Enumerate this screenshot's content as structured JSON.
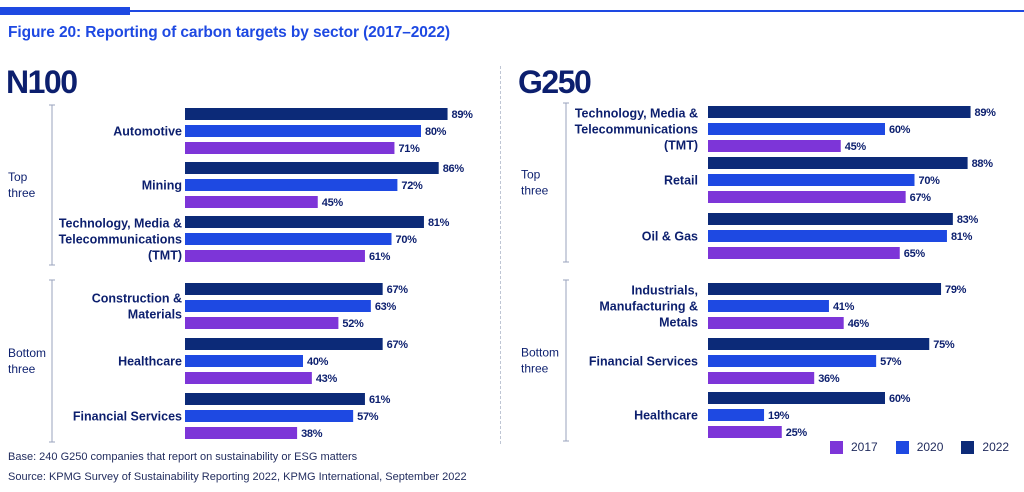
{
  "header": {
    "title": "Figure 20: Reporting of carbon targets by sector (2017–2022)"
  },
  "colors": {
    "accent": "#1e49e2",
    "title": "#1e49e2",
    "panel_title": "#0c1f6e",
    "label": "#0c1f6e",
    "group_label": "#0c1f6e",
    "bracket": "#9aa3bd",
    "series_2022": "#0c2a78",
    "series_2020": "#1e49e2",
    "series_2017": "#7d35d8"
  },
  "footer": {
    "base": "Base: 240 G250 companies that report on sustainability or ESG matters",
    "source": "Source: KPMG Survey of Sustainability Reporting 2022, KPMG International, September 2022"
  },
  "legend": [
    {
      "label": "2017",
      "color": "#7d35d8"
    },
    {
      "label": "2020",
      "color": "#1e49e2"
    },
    {
      "label": "2022",
      "color": "#0c2a78"
    }
  ],
  "chart_data": [
    {
      "type": "bar",
      "orientation": "horizontal",
      "title": "N100",
      "groups": [
        "Top three",
        "Bottom three"
      ],
      "categories": [
        {
          "label": "Automotive",
          "group": "Top three"
        },
        {
          "label": "Mining",
          "group": "Top three"
        },
        {
          "label": "Technology, Media & Telecommunications (TMT)",
          "group": "Top three"
        },
        {
          "label": "Construction & Materials",
          "group": "Bottom three"
        },
        {
          "label": "Healthcare",
          "group": "Bottom three"
        },
        {
          "label": "Financial Services",
          "group": "Bottom three"
        }
      ],
      "series": [
        {
          "name": "2022",
          "values": [
            89,
            86,
            81,
            67,
            67,
            61
          ]
        },
        {
          "name": "2020",
          "values": [
            80,
            72,
            70,
            63,
            40,
            57
          ]
        },
        {
          "name": "2017",
          "values": [
            71,
            45,
            61,
            52,
            43,
            38
          ]
        }
      ],
      "unit": "%",
      "xlim": [
        0,
        100
      ],
      "legend": "bottom-right"
    },
    {
      "type": "bar",
      "orientation": "horizontal",
      "title": "G250",
      "groups": [
        "Top three",
        "Bottom three"
      ],
      "categories": [
        {
          "label": "Technology, Media & Telecommunications (TMT)",
          "group": "Top three"
        },
        {
          "label": "Retail",
          "group": "Top three"
        },
        {
          "label": "Oil & Gas",
          "group": "Top three"
        },
        {
          "label": "Industrials, Manufacturing & Metals",
          "group": "Bottom three"
        },
        {
          "label": "Financial Services",
          "group": "Bottom three"
        },
        {
          "label": "Healthcare",
          "group": "Bottom three"
        }
      ],
      "series": [
        {
          "name": "2022",
          "values": [
            89,
            88,
            83,
            79,
            75,
            60
          ]
        },
        {
          "name": "2020",
          "values": [
            60,
            70,
            81,
            41,
            57,
            19
          ]
        },
        {
          "name": "2017",
          "values": [
            45,
            67,
            65,
            46,
            36,
            25
          ]
        }
      ],
      "unit": "%",
      "xlim": [
        0,
        100
      ],
      "legend": "bottom-right"
    }
  ]
}
